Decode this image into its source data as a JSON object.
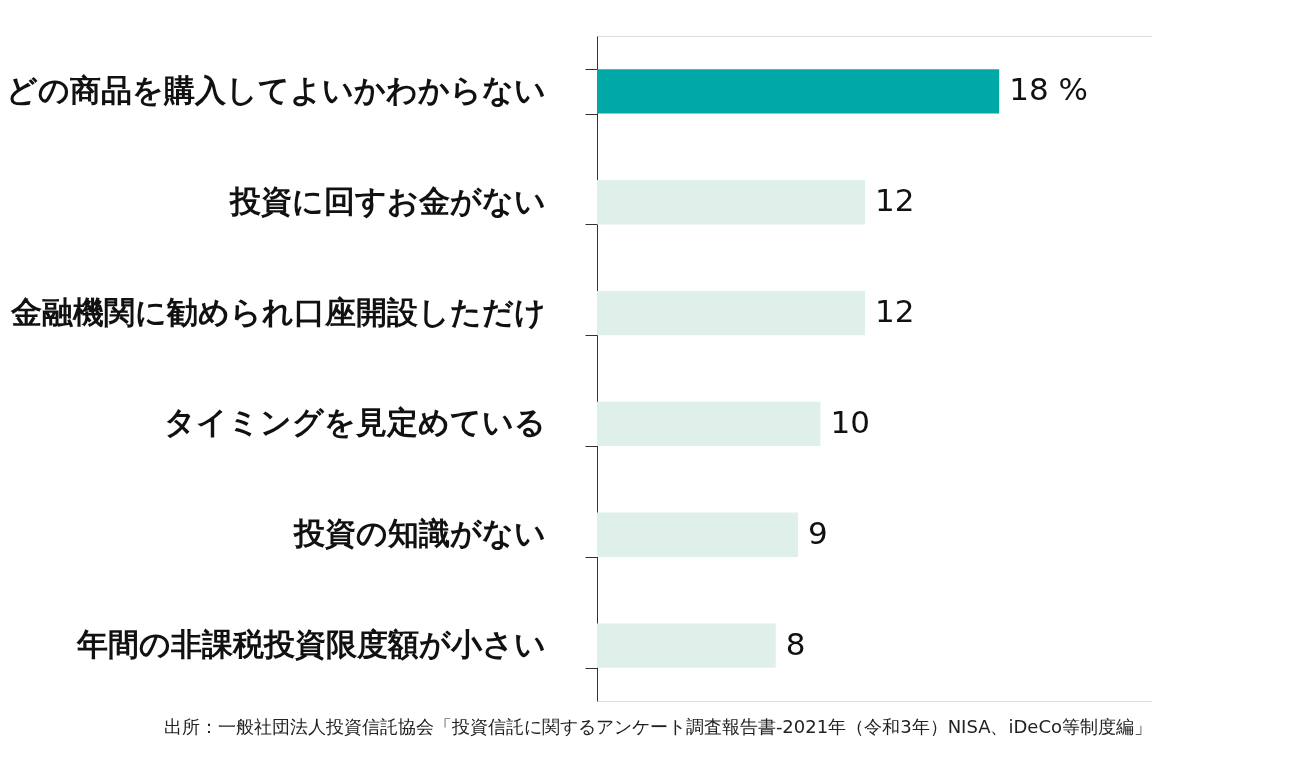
{
  "chart_data": {
    "type": "bar",
    "orientation": "horizontal",
    "categories": [
      "どの商品を購入してよいかわからない",
      "投資に回すお金がない",
      "金融機関に勧められ口座開設しただけ",
      "タイミングを見定めている",
      "投資の知識がない",
      "年間の非課税投資限度額が小さい"
    ],
    "values": [
      18,
      12,
      12,
      10,
      9,
      8
    ],
    "value_labels": [
      "18 %",
      "12",
      "12",
      "10",
      "9",
      "8"
    ],
    "colors": [
      "#00a9a6",
      "#dff0ea",
      "#dff0ea",
      "#dff0ea",
      "#dff0ea",
      "#dff0ea"
    ],
    "grid": false,
    "legend": false,
    "tick_labels": "y",
    "annotations": [
      "出所：一般社団法人投資信託協会「投資信託に関するアンケート調査報告書-2021年（令和3年）NISA、iDeCo等制度編」"
    ]
  }
}
